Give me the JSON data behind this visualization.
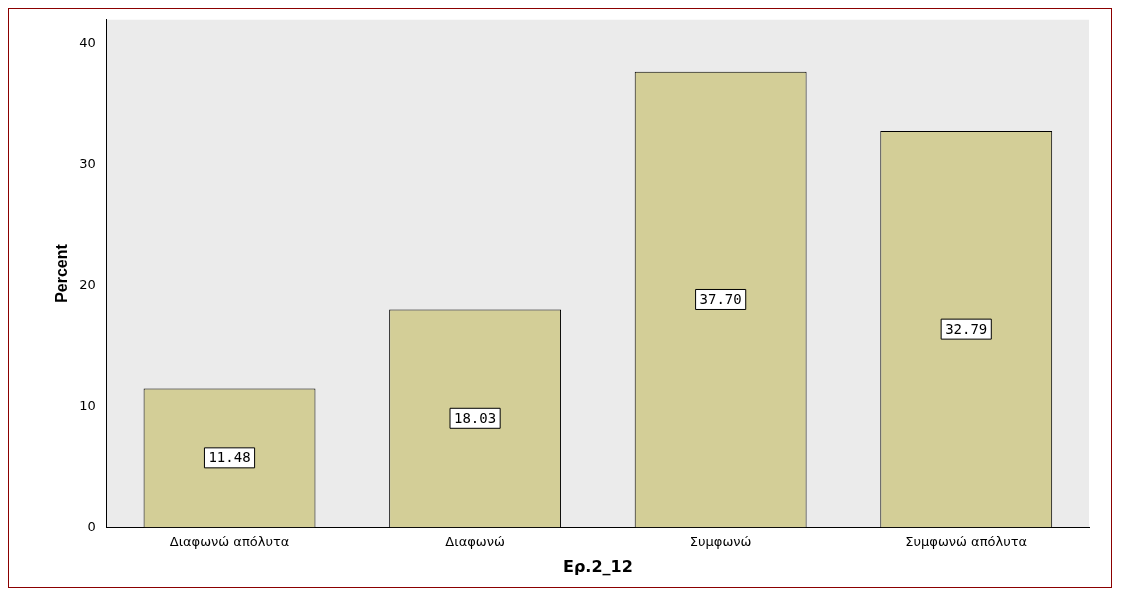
{
  "chart_data": {
    "type": "bar",
    "xlabel": "Ερ.2_12",
    "ylabel": "Percent",
    "categories": [
      "Διαφωνώ απόλυτα",
      "Διαφωνώ",
      "Συμφωνώ",
      "Συμφωνώ απόλυτα"
    ],
    "values": [
      11.48,
      18.03,
      37.7,
      32.79
    ],
    "color": "#d3ce97",
    "value_labels": [
      "11.48",
      "18.03",
      "37.70",
      "32.79"
    ],
    "ylim": [
      0,
      42
    ],
    "yticks": [
      0,
      10,
      20,
      30,
      40
    ],
    "grid": false,
    "legend": false
  }
}
